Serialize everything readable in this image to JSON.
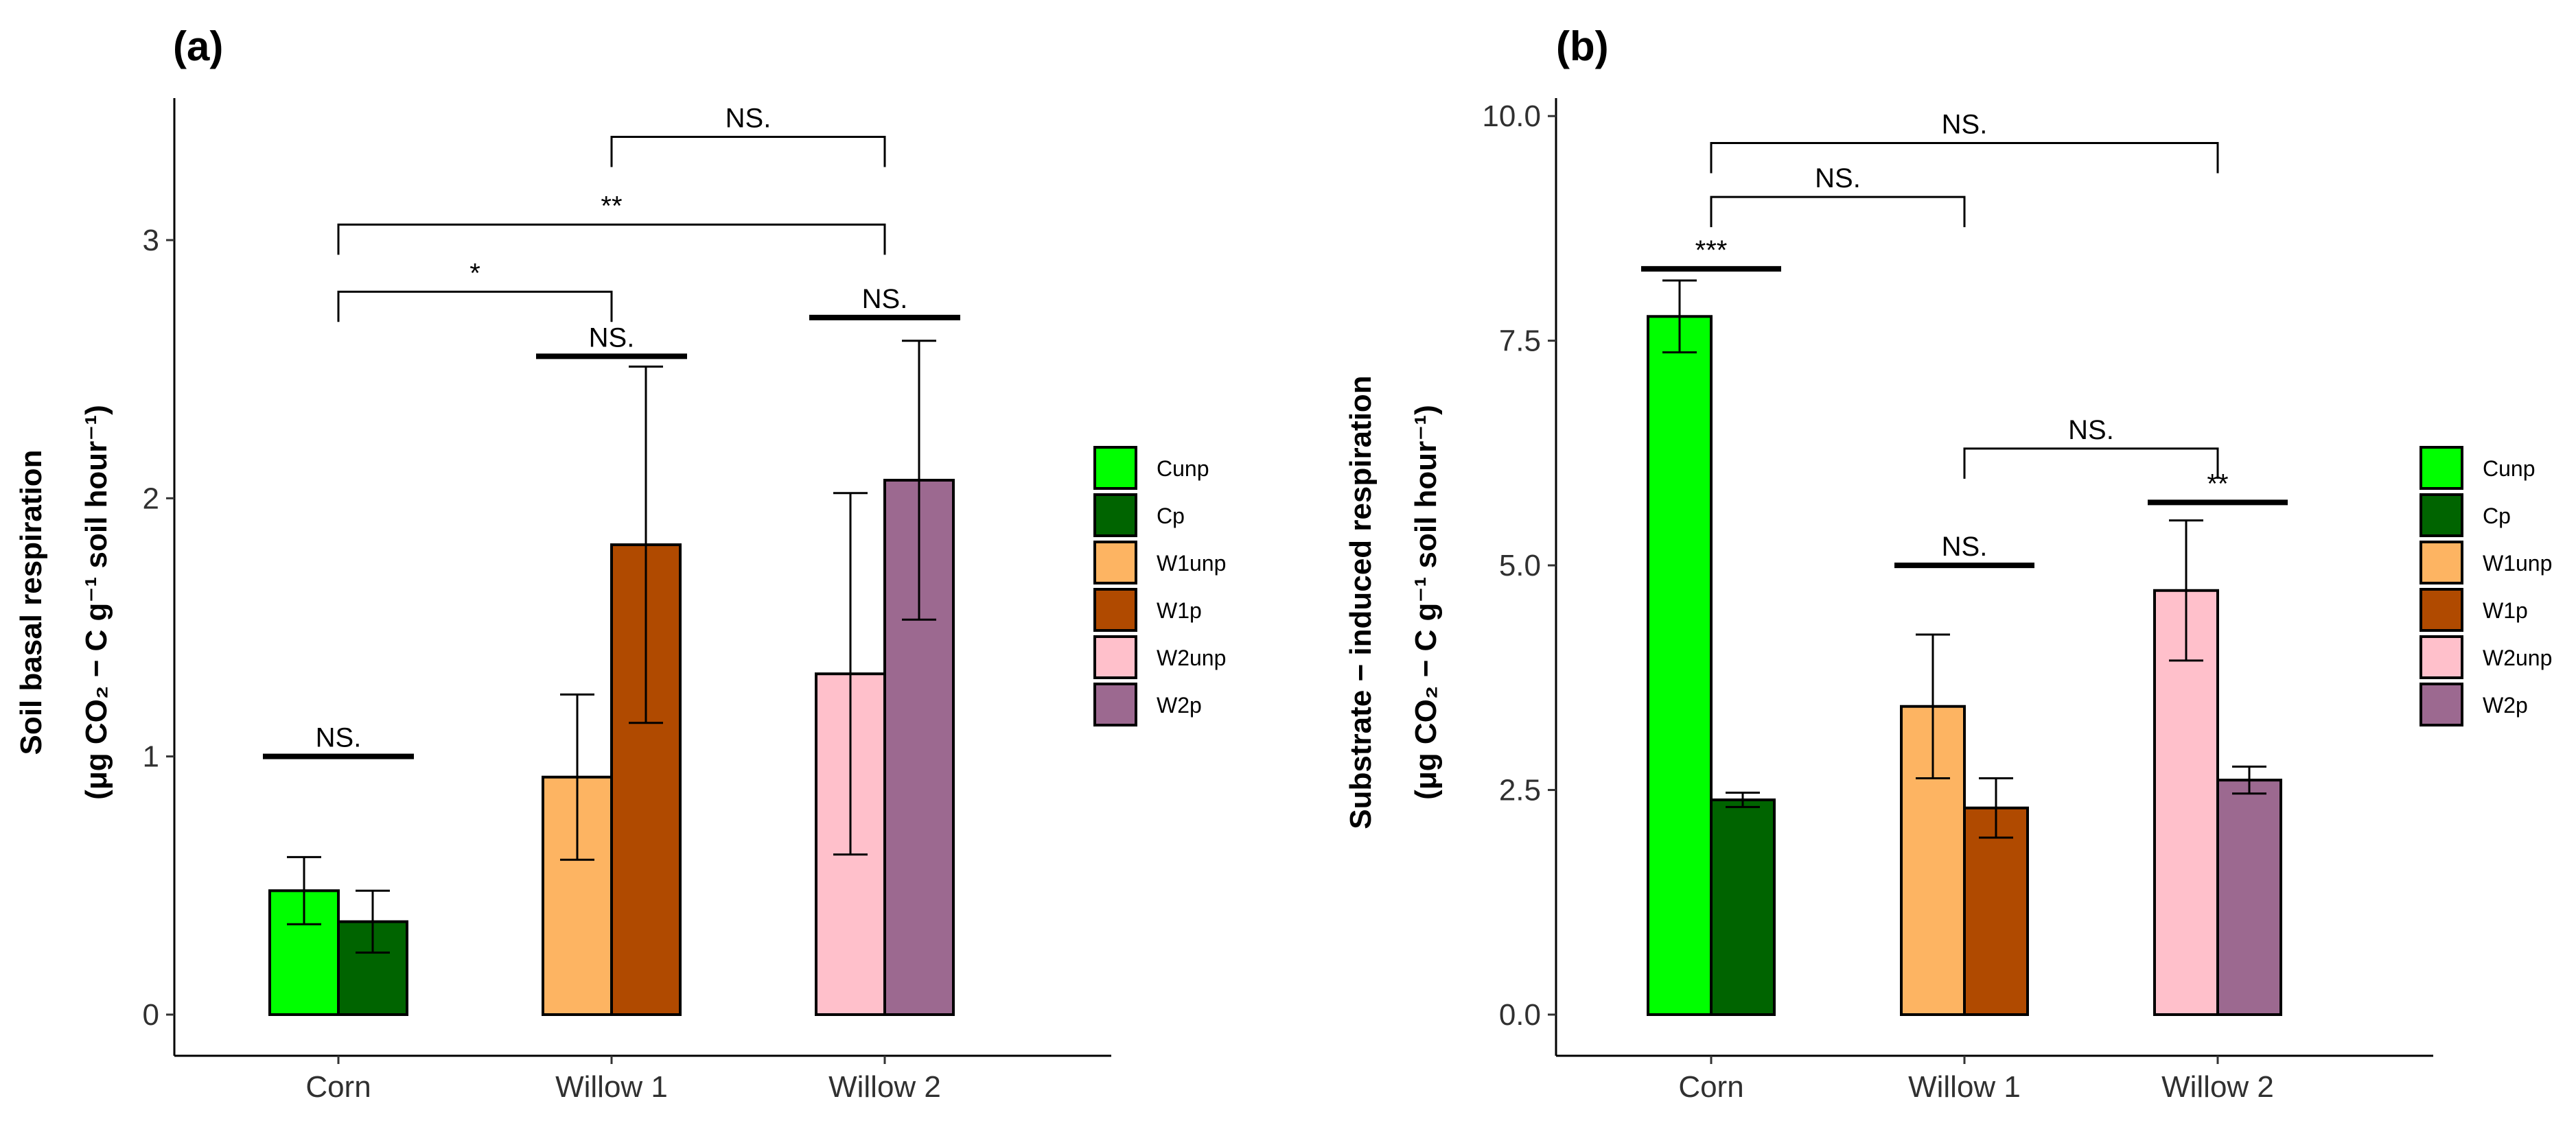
{
  "legend": [
    {
      "key": "Cunp",
      "label": "Cunp",
      "color": "#00FF00"
    },
    {
      "key": "Cp",
      "label": "Cp",
      "color": "#006400"
    },
    {
      "key": "W1unp",
      "label": "W1unp",
      "color": "#FDB462"
    },
    {
      "key": "W1p",
      "label": "W1p",
      "color": "#B04A00"
    },
    {
      "key": "W2unp",
      "label": "W2unp",
      "color": "#FFC0CB"
    },
    {
      "key": "W2p",
      "label": "W2p",
      "color": "#9C6990"
    }
  ],
  "chart_data": [
    {
      "panel": "(a)",
      "type": "bar",
      "categories": [
        "Corn",
        "Willow 1",
        "Willow 2"
      ],
      "ylim": [
        0,
        3.55
      ],
      "yticks": [
        0,
        1,
        2,
        3
      ],
      "ytick_labels": [
        "0",
        "1",
        "2",
        "3"
      ],
      "ylabel_line1": "Soil basal respiration",
      "ylabel_line2": "(μg CO₂ − C g⁻¹ soil hour⁻¹)",
      "xlabel": "",
      "series_pairs": [
        {
          "category": "Corn",
          "bars": [
            {
              "key": "Cunp",
              "value": 0.48,
              "err": 0.13
            },
            {
              "key": "Cp",
              "value": 0.36,
              "err": 0.12
            }
          ]
        },
        {
          "category": "Willow 1",
          "bars": [
            {
              "key": "W1unp",
              "value": 0.92,
              "err": 0.32
            },
            {
              "key": "W1p",
              "value": 1.82,
              "err": 0.69
            }
          ]
        },
        {
          "category": "Willow 2",
          "bars": [
            {
              "key": "W2unp",
              "value": 1.32,
              "err": 0.7
            },
            {
              "key": "W2p",
              "value": 2.07,
              "err": 0.54
            }
          ]
        }
      ],
      "annotations": [
        {
          "kind": "hline",
          "category": "Corn",
          "y": 1.0,
          "label": "NS."
        },
        {
          "kind": "hline",
          "category": "Willow 1",
          "y": 2.55,
          "label": "NS."
        },
        {
          "kind": "hline",
          "category": "Willow 2",
          "y": 2.7,
          "label": "NS."
        },
        {
          "kind": "bracket",
          "from": "Corn",
          "to": "Willow 1",
          "y": 2.8,
          "label": "*"
        },
        {
          "kind": "bracket",
          "from": "Corn",
          "to": "Willow 2",
          "y": 3.06,
          "label": "**"
        },
        {
          "kind": "bracket",
          "from": "Willow 1",
          "to": "Willow 2",
          "y": 3.4,
          "label": "NS."
        }
      ]
    },
    {
      "panel": "(b)",
      "type": "bar",
      "categories": [
        "Corn",
        "Willow 1",
        "Willow 2"
      ],
      "ylim": [
        0,
        10.2
      ],
      "yticks": [
        0,
        2.5,
        5,
        7.5,
        10
      ],
      "ytick_labels": [
        "0.0",
        "2.5",
        "5.0",
        "7.5",
        "10.0"
      ],
      "ylabel_line1": "Substrate − induced respiration",
      "ylabel_line2": "(μg CO₂ − C g⁻¹ soil hour⁻¹)",
      "xlabel": "",
      "series_pairs": [
        {
          "category": "Corn",
          "bars": [
            {
              "key": "Cunp",
              "value": 7.77,
              "err": 0.4
            },
            {
              "key": "Cp",
              "value": 2.39,
              "err": 0.08
            }
          ]
        },
        {
          "category": "Willow 1",
          "bars": [
            {
              "key": "W1unp",
              "value": 3.43,
              "err": 0.8
            },
            {
              "key": "W1p",
              "value": 2.3,
              "err": 0.33
            }
          ]
        },
        {
          "category": "Willow 2",
          "bars": [
            {
              "key": "W2unp",
              "value": 4.72,
              "err": 0.78
            },
            {
              "key": "W2p",
              "value": 2.61,
              "err": 0.15
            }
          ]
        }
      ],
      "annotations": [
        {
          "kind": "hline",
          "category": "Corn",
          "y": 8.3,
          "label": "***"
        },
        {
          "kind": "hline",
          "category": "Willow 1",
          "y": 5.0,
          "label": "NS."
        },
        {
          "kind": "hline",
          "category": "Willow 2",
          "y": 5.7,
          "label": "**"
        },
        {
          "kind": "bracket",
          "from": "Willow 1",
          "to": "Willow 2",
          "y": 6.3,
          "label": "NS."
        },
        {
          "kind": "bracket",
          "from": "Corn",
          "to": "Willow 1",
          "y": 9.1,
          "label": "NS."
        },
        {
          "kind": "bracket",
          "from": "Corn",
          "to": "Willow 2",
          "y": 9.7,
          "label": "NS."
        }
      ]
    }
  ]
}
